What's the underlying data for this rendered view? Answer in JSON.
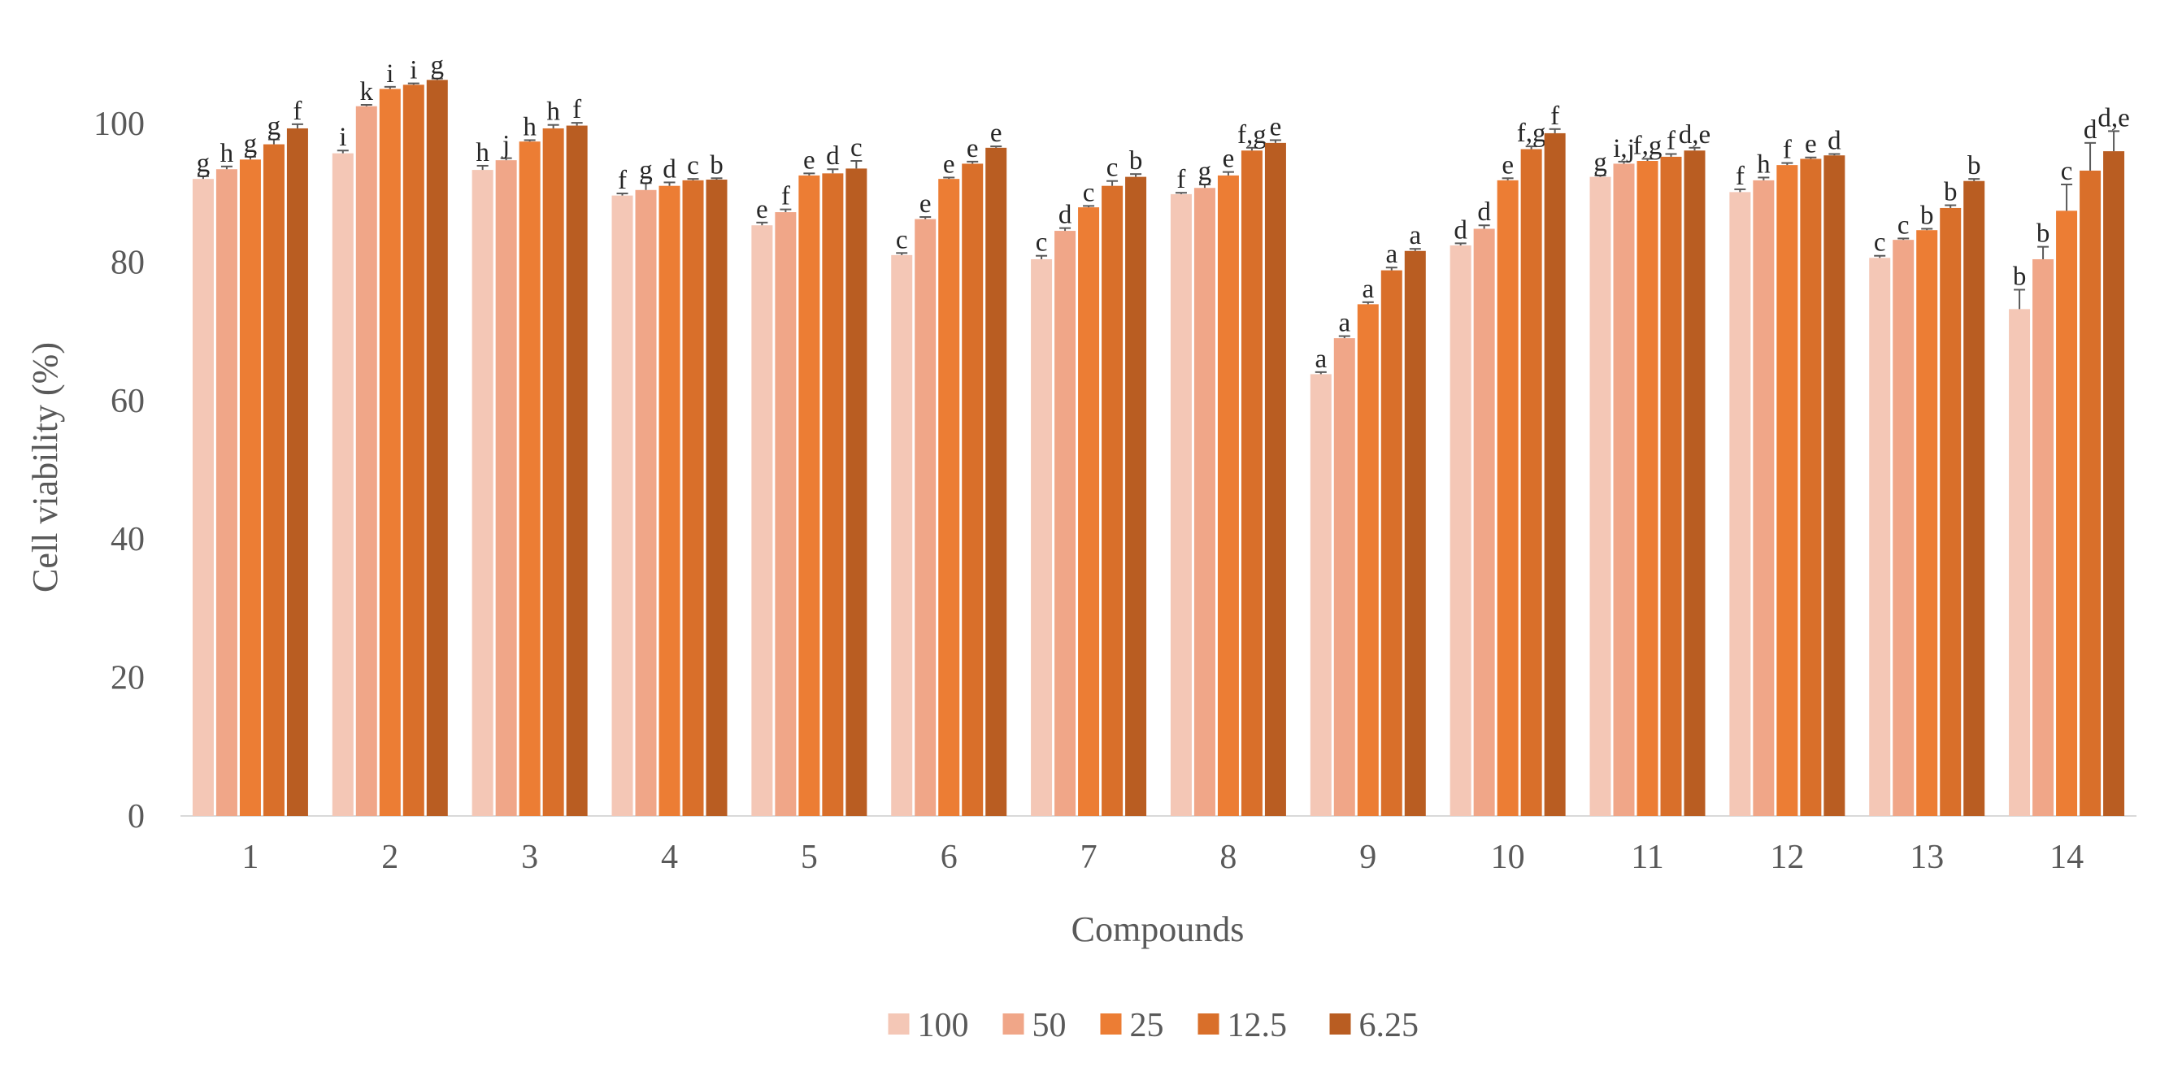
{
  "chart_data": {
    "type": "bar",
    "xlabel": "Compounds",
    "ylabel": "Cell viability (%)",
    "ylim": [
      0,
      110
    ],
    "yticks": [
      0,
      20,
      40,
      60,
      80,
      100
    ],
    "grid": false,
    "legend_position": "bottom",
    "categories": [
      "1",
      "2",
      "3",
      "4",
      "5",
      "6",
      "7",
      "8",
      "9",
      "10",
      "11",
      "12",
      "13",
      "14"
    ],
    "series": [
      {
        "name": "100",
        "color": "#f4c7b6",
        "values": [
          92.0,
          95.7,
          93.3,
          89.6,
          85.3,
          81.0,
          80.4,
          89.8,
          63.8,
          82.4,
          92.3,
          90.1,
          80.6,
          73.2
        ],
        "errors": [
          0.4,
          0.4,
          0.6,
          0.3,
          0.4,
          0.3,
          0.5,
          0.2,
          0.3,
          0.3,
          0.2,
          0.4,
          0.3,
          2.8
        ],
        "sig": [
          "g",
          "i",
          "h",
          "f",
          "e",
          "c",
          "c",
          "f",
          "a",
          "d",
          "g",
          "f",
          "c",
          "b"
        ]
      },
      {
        "name": "50",
        "color": "#f0a688",
        "values": [
          93.4,
          102.5,
          94.7,
          90.4,
          87.2,
          86.2,
          84.5,
          90.7,
          69.0,
          84.8,
          94.2,
          91.8,
          83.2,
          80.4
        ],
        "errors": [
          0.4,
          0.2,
          0.3,
          1.0,
          0.4,
          0.3,
          0.4,
          0.5,
          0.3,
          0.5,
          0.3,
          0.4,
          0.2,
          1.8
        ],
        "sig": [
          "h",
          "k",
          "j",
          "g",
          "f",
          "e",
          "d",
          "g",
          "a",
          "d",
          "i,j",
          "h",
          "c",
          "b"
        ]
      },
      {
        "name": "25",
        "color": "#ec7d34",
        "values": [
          94.8,
          105.0,
          97.4,
          91.0,
          92.5,
          92.0,
          87.9,
          92.5,
          73.9,
          91.8,
          94.6,
          94.0,
          84.6,
          87.4
        ],
        "errors": [
          0.4,
          0.3,
          0.2,
          0.5,
          0.3,
          0.2,
          0.2,
          0.5,
          0.3,
          0.3,
          0.3,
          0.3,
          0.2,
          3.8
        ],
        "sig": [
          "g",
          "i",
          "h",
          "d",
          "e",
          "e",
          "c",
          "e",
          "a",
          "e",
          "f,g",
          "f",
          "b",
          "c"
        ]
      },
      {
        "name": "12.5",
        "color": "#d96f2a",
        "values": [
          97.0,
          105.6,
          99.3,
          91.8,
          92.8,
          94.2,
          91.0,
          96.1,
          78.8,
          96.3,
          95.2,
          94.9,
          87.8,
          93.2
        ],
        "errors": [
          0.7,
          0.2,
          0.5,
          0.2,
          0.6,
          0.3,
          0.7,
          0.4,
          0.4,
          0.4,
          0.4,
          0.2,
          0.4,
          4.0
        ],
        "sig": [
          "g",
          "i",
          "h",
          "c",
          "d",
          "e",
          "c",
          "f,g",
          "a",
          "f,g",
          "f",
          "e",
          "b",
          "d"
        ]
      },
      {
        "name": "6.25",
        "color": "#b95d22",
        "values": [
          99.3,
          106.3,
          99.7,
          91.9,
          93.5,
          96.5,
          92.3,
          97.2,
          81.6,
          98.6,
          96.1,
          95.4,
          91.7,
          96.0
        ],
        "errors": [
          0.6,
          0.2,
          0.4,
          0.2,
          1.1,
          0.2,
          0.4,
          0.4,
          0.3,
          0.6,
          0.4,
          0.2,
          0.3,
          2.9
        ],
        "sig": [
          "f",
          "g",
          "f",
          "b",
          "c",
          "e",
          "b",
          "e",
          "a",
          "f",
          "d,e",
          "d",
          "b",
          "d,e"
        ]
      }
    ]
  }
}
